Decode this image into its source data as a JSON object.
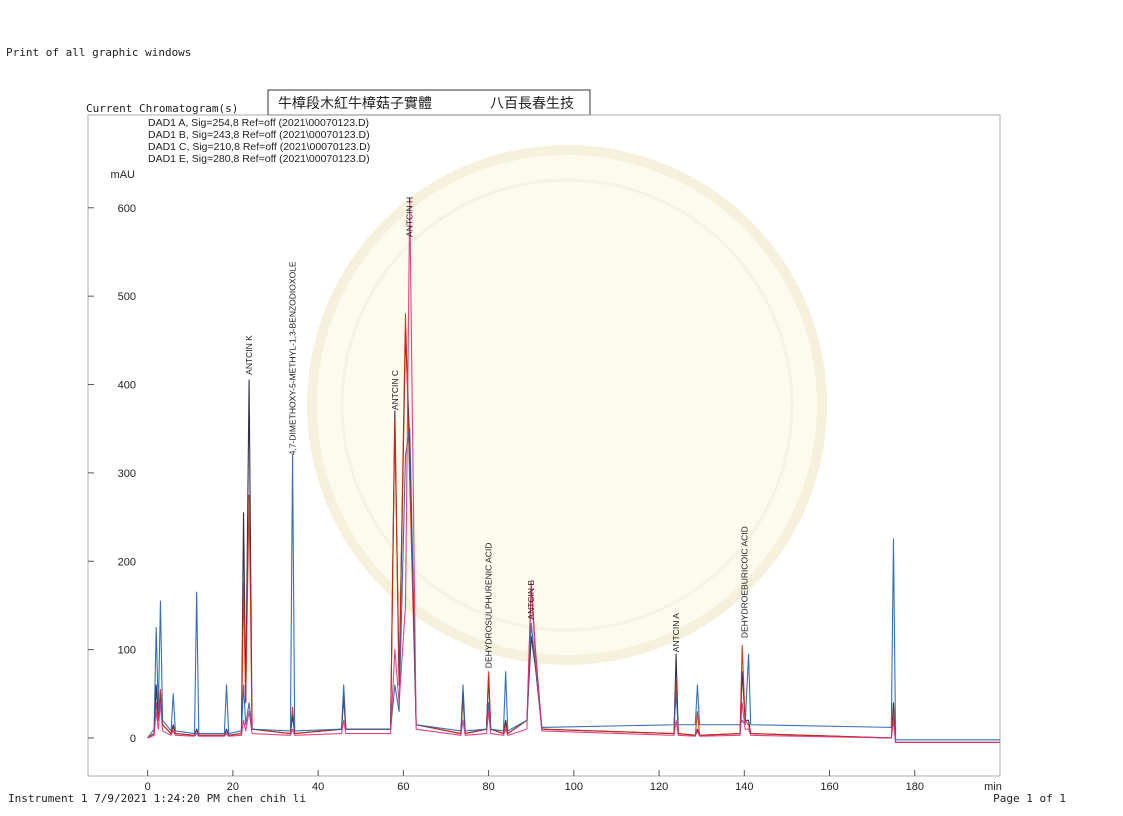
{
  "header": "Print of all graphic windows",
  "section_label": "Current Chromatogram(s)",
  "sample_box": [
    "牛樟段木紅牛樟菇子實體",
    "八百長春生技"
  ],
  "footer": {
    "left": "Instrument 1 7/9/2021 1:24:20 PM chen chih li",
    "right": "Page 1 of 1"
  },
  "chart_data": {
    "type": "line",
    "y_label": "mAU",
    "x_label": "min",
    "xlim": [
      -14,
      200
    ],
    "ylim": [
      -43,
      705
    ],
    "xticks": [
      0,
      20,
      40,
      60,
      80,
      100,
      120,
      140,
      160,
      180
    ],
    "yticks": [
      0,
      100,
      200,
      300,
      400,
      500,
      600
    ],
    "x": [
      0,
      1.5,
      2,
      2.5,
      3,
      3.5,
      5.5,
      6,
      6.5,
      11,
      11.5,
      12,
      18,
      18.5,
      19,
      22,
      22.5,
      23,
      23.8,
      24.5,
      33.5,
      34,
      34.5,
      45.5,
      46,
      46.5,
      57,
      58,
      59,
      60.5,
      61.5,
      63,
      73.5,
      74,
      74.5,
      79.5,
      80,
      80.5,
      83.5,
      84,
      84.5,
      89,
      90,
      91,
      92.5,
      123.5,
      124,
      124.5,
      128.5,
      129,
      129.5,
      139,
      139.5,
      140.2,
      141,
      141.5,
      174.5,
      175,
      175.5,
      200
    ],
    "series": [
      {
        "name": "DAD1 A, Sig=254,8 Ref=off (2021\\00070123.D)",
        "color": "#1a1a3a",
        "values": [
          0,
          5,
          60,
          20,
          50,
          15,
          5,
          15,
          5,
          3,
          10,
          3,
          3,
          10,
          3,
          5,
          255,
          40,
          405,
          10,
          5,
          25,
          5,
          10,
          45,
          10,
          10,
          370,
          60,
          460,
          330,
          15,
          5,
          50,
          5,
          10,
          70,
          10,
          5,
          20,
          5,
          20,
          115,
          80,
          10,
          5,
          95,
          5,
          3,
          10,
          3,
          5,
          75,
          20,
          20,
          5,
          0,
          40,
          -5,
          -5
        ]
      },
      {
        "name": "DAD1 B, Sig=243,8 Ref=off (2021\\00070123.D)",
        "color": "#d42a10",
        "values": [
          0,
          5,
          40,
          20,
          55,
          15,
          5,
          12,
          5,
          3,
          8,
          3,
          3,
          8,
          3,
          5,
          175,
          40,
          275,
          10,
          5,
          35,
          5,
          10,
          50,
          10,
          10,
          360,
          60,
          480,
          290,
          15,
          5,
          45,
          5,
          10,
          75,
          10,
          5,
          15,
          5,
          20,
          175,
          100,
          10,
          5,
          65,
          5,
          3,
          30,
          3,
          5,
          105,
          20,
          15,
          5,
          0,
          30,
          -5,
          -5
        ]
      },
      {
        "name": "DAD1 C, Sig=210,8 Ref=off (2021\\00070123.D)",
        "color": "#2060b0",
        "values": [
          0,
          10,
          125,
          30,
          155,
          20,
          8,
          50,
          8,
          5,
          165,
          5,
          5,
          60,
          5,
          8,
          60,
          15,
          40,
          10,
          8,
          320,
          8,
          10,
          60,
          10,
          10,
          60,
          30,
          320,
          350,
          15,
          8,
          60,
          8,
          10,
          40,
          10,
          8,
          75,
          8,
          20,
          130,
          80,
          12,
          15,
          50,
          15,
          15,
          60,
          15,
          15,
          20,
          15,
          95,
          15,
          12,
          225,
          -2,
          -2
        ]
      },
      {
        "name": "DAD1 E, Sig=280,8 Ref=off (2021\\00070123.D)",
        "color": "#e0307a",
        "values": [
          0,
          3,
          30,
          10,
          40,
          8,
          3,
          8,
          3,
          2,
          5,
          2,
          2,
          5,
          2,
          3,
          20,
          8,
          30,
          5,
          3,
          10,
          3,
          5,
          20,
          5,
          5,
          100,
          40,
          150,
          610,
          10,
          3,
          20,
          3,
          5,
          30,
          5,
          3,
          10,
          3,
          10,
          175,
          90,
          8,
          3,
          20,
          3,
          2,
          8,
          2,
          3,
          40,
          10,
          10,
          3,
          0,
          20,
          -5,
          -5
        ]
      }
    ],
    "annotations": [
      {
        "label": "ANTCIN K",
        "x": 23.8,
        "y": 411
      },
      {
        "label": "4,7-DIMETHOXY-5-METHYL-1,3-BENZODIOXOLE",
        "x": 34,
        "y": 320
      },
      {
        "label": "ANTCIN C",
        "x": 58,
        "y": 371
      },
      {
        "label": "ANTCIN H",
        "x": 61.5,
        "y": 567
      },
      {
        "label": "DEHYDROSULPHURENIC ACID",
        "x": 80,
        "y": 79
      },
      {
        "label": "ANTCIN B",
        "x": 90,
        "y": 134
      },
      {
        "label": "ANTCIN A",
        "x": 124,
        "y": 97
      },
      {
        "label": "DEHYDROEBURICOIC ACID",
        "x": 140,
        "y": 113
      }
    ]
  }
}
